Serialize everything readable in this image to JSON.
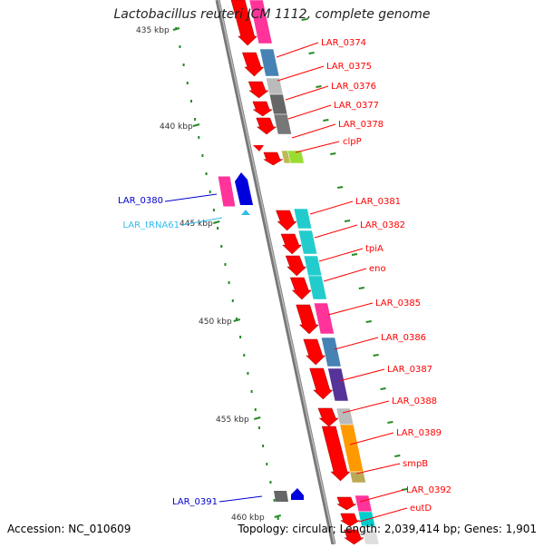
{
  "title": "Lactobacillus reuteri JCM 1112, complete genome",
  "footer": {
    "accession": "Accession: NC_010609",
    "summary": "Topology: circular; Length: 2,039,414 bp; Genes: 1,901"
  },
  "colors": {
    "cds": "#ff0000",
    "highlight_blue": "#0000cc",
    "trna": "#33bbee",
    "backbone": "#888888",
    "tick": "#228b22"
  },
  "ruler_labels": [
    "435 kbp",
    "440 kbp",
    "445 kbp",
    "450 kbp",
    "455 kbp",
    "460 kbp"
  ],
  "genes": [
    {
      "label": "LAR_0374",
      "color": "red"
    },
    {
      "label": "LAR_0375",
      "color": "red"
    },
    {
      "label": "LAR_0376",
      "color": "red"
    },
    {
      "label": "LAR_0377",
      "color": "red"
    },
    {
      "label": "LAR_0378",
      "color": "red"
    },
    {
      "label": "clpP",
      "color": "red"
    },
    {
      "label": "LAR_0380",
      "color": "blue"
    },
    {
      "label": "LAR_tRNA61",
      "color": "cyan"
    },
    {
      "label": "LAR_0381",
      "color": "red"
    },
    {
      "label": "LAR_0382",
      "color": "red"
    },
    {
      "label": "tpiA",
      "color": "red"
    },
    {
      "label": "eno",
      "color": "red"
    },
    {
      "label": "LAR_0385",
      "color": "red"
    },
    {
      "label": "LAR_0386",
      "color": "red"
    },
    {
      "label": "LAR_0387",
      "color": "red"
    },
    {
      "label": "LAR_0388",
      "color": "red"
    },
    {
      "label": "LAR_0389",
      "color": "red"
    },
    {
      "label": "smpB",
      "color": "red"
    },
    {
      "label": "LAR_0391",
      "color": "blue"
    },
    {
      "label": "LAR_0392",
      "color": "red"
    },
    {
      "label": "eutD",
      "color": "red"
    }
  ]
}
